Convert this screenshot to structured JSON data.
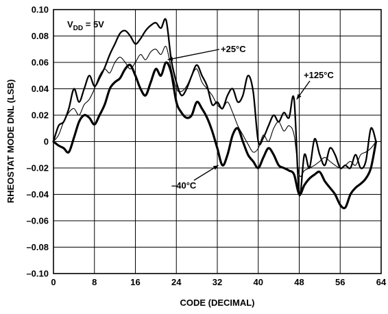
{
  "chart_data": {
    "type": "line",
    "title": "",
    "xlabel": "CODE (DECIMAL)",
    "ylabel": "RHEOSTAT MODE DNL (LSB)",
    "xlim": [
      0,
      64
    ],
    "ylim": [
      -0.1,
      0.1
    ],
    "grid": true,
    "x_ticks": [
      "0",
      "8",
      "16",
      "24",
      "32",
      "40",
      "48",
      "56",
      "64"
    ],
    "y_ticks": [
      "0.10",
      "0.08",
      "0.06",
      "0.04",
      "0.02",
      "0",
      "–0.02",
      "–0.04",
      "–0.06",
      "–0.08",
      "–0.10"
    ],
    "condition": {
      "prefix": "V",
      "subscript": "DD",
      "suffix": " = 5V"
    },
    "series": [
      {
        "name": "–40°C",
        "style": "heavy",
        "x": [
          0,
          1,
          2,
          3,
          4,
          5,
          6,
          7,
          8,
          9,
          10,
          11,
          12,
          13,
          14,
          15,
          16,
          17,
          18,
          19,
          20,
          21,
          22,
          23,
          24,
          25,
          26,
          27,
          28,
          29,
          30,
          31,
          32,
          33,
          34,
          35,
          36,
          37,
          38,
          39,
          40,
          41,
          42,
          43,
          44,
          45,
          46,
          47,
          48,
          49,
          50,
          51,
          52,
          53,
          54,
          55,
          56,
          57,
          58,
          59,
          60,
          61,
          62,
          63
        ],
        "y": [
          0.0,
          -0.003,
          -0.005,
          -0.008,
          0.003,
          0.015,
          0.02,
          0.018,
          0.013,
          0.02,
          0.028,
          0.04,
          0.045,
          0.048,
          0.055,
          0.058,
          0.05,
          0.04,
          0.035,
          0.045,
          0.055,
          0.05,
          0.06,
          0.052,
          0.03,
          0.022,
          0.018,
          0.02,
          0.03,
          0.025,
          0.018,
          0.008,
          -0.005,
          -0.018,
          -0.01,
          0.005,
          0.01,
          0.0,
          -0.01,
          -0.015,
          -0.02,
          -0.012,
          -0.005,
          -0.01,
          -0.018,
          -0.02,
          -0.022,
          -0.025,
          -0.04,
          -0.033,
          -0.028,
          -0.025,
          -0.023,
          -0.03,
          -0.035,
          -0.04,
          -0.048,
          -0.05,
          -0.04,
          -0.035,
          -0.032,
          -0.028,
          -0.02,
          0.0
        ]
      },
      {
        "name": "+25°C",
        "style": "thin",
        "x": [
          0,
          1,
          2,
          3,
          4,
          5,
          6,
          7,
          8,
          9,
          10,
          11,
          12,
          13,
          14,
          15,
          16,
          17,
          18,
          19,
          20,
          21,
          22,
          23,
          24,
          25,
          26,
          27,
          28,
          29,
          30,
          31,
          32,
          33,
          34,
          35,
          36,
          37,
          38,
          39,
          40,
          41,
          42,
          43,
          44,
          45,
          46,
          47,
          48,
          49,
          50,
          51,
          52,
          53,
          54,
          55,
          56,
          57,
          58,
          59,
          60,
          61,
          62,
          63
        ],
        "y": [
          0.0,
          0.005,
          0.015,
          0.022,
          0.025,
          0.02,
          0.028,
          0.032,
          0.04,
          0.05,
          0.055,
          0.052,
          0.06,
          0.064,
          0.06,
          0.055,
          0.06,
          0.066,
          0.062,
          0.068,
          0.07,
          0.066,
          0.072,
          0.055,
          0.04,
          0.038,
          0.042,
          0.05,
          0.055,
          0.045,
          0.04,
          0.035,
          0.028,
          0.025,
          0.03,
          0.022,
          0.012,
          0.005,
          -0.002,
          -0.008,
          -0.005,
          0.005,
          0.0,
          0.01,
          0.015,
          0.008,
          0.012,
          0.005,
          -0.025,
          -0.022,
          -0.02,
          -0.018,
          -0.015,
          -0.012,
          -0.015,
          -0.018,
          -0.02,
          -0.018,
          -0.015,
          -0.018,
          -0.01,
          -0.008,
          -0.005,
          0.0
        ]
      },
      {
        "name": "+125°C",
        "style": "medium",
        "x": [
          0,
          1,
          2,
          3,
          4,
          5,
          6,
          7,
          8,
          9,
          10,
          11,
          12,
          13,
          14,
          15,
          16,
          17,
          18,
          19,
          20,
          21,
          22,
          23,
          24,
          25,
          26,
          27,
          28,
          29,
          30,
          31,
          32,
          33,
          34,
          35,
          36,
          37,
          38,
          39,
          40,
          41,
          42,
          43,
          44,
          45,
          46,
          47,
          48,
          49,
          50,
          51,
          52,
          53,
          54,
          55,
          56,
          57,
          58,
          59,
          60,
          61,
          62,
          63
        ],
        "y": [
          0.0,
          0.012,
          0.015,
          0.025,
          0.04,
          0.03,
          0.04,
          0.05,
          0.042,
          0.048,
          0.056,
          0.066,
          0.074,
          0.082,
          0.084,
          0.08,
          0.074,
          0.078,
          0.084,
          0.088,
          0.09,
          0.086,
          0.092,
          0.062,
          0.045,
          0.035,
          0.04,
          0.05,
          0.058,
          0.05,
          0.042,
          0.028,
          0.03,
          0.025,
          0.035,
          0.04,
          0.03,
          0.035,
          0.05,
          0.038,
          0.0,
          0.003,
          0.012,
          0.02,
          0.015,
          0.022,
          0.018,
          0.032,
          -0.04,
          -0.01,
          -0.02,
          0.002,
          -0.01,
          -0.018,
          -0.005,
          -0.01,
          -0.02,
          -0.018,
          -0.02,
          -0.01,
          -0.02,
          -0.015,
          0.01,
          0.0
        ]
      }
    ],
    "annotations": [
      {
        "label": "+25°C",
        "x": 22.3,
        "y": 0.062
      },
      {
        "label": "+125°C",
        "x": 47.5,
        "y": 0.032
      },
      {
        "label": "–40°C",
        "x": 32.2,
        "y": -0.018
      }
    ]
  }
}
